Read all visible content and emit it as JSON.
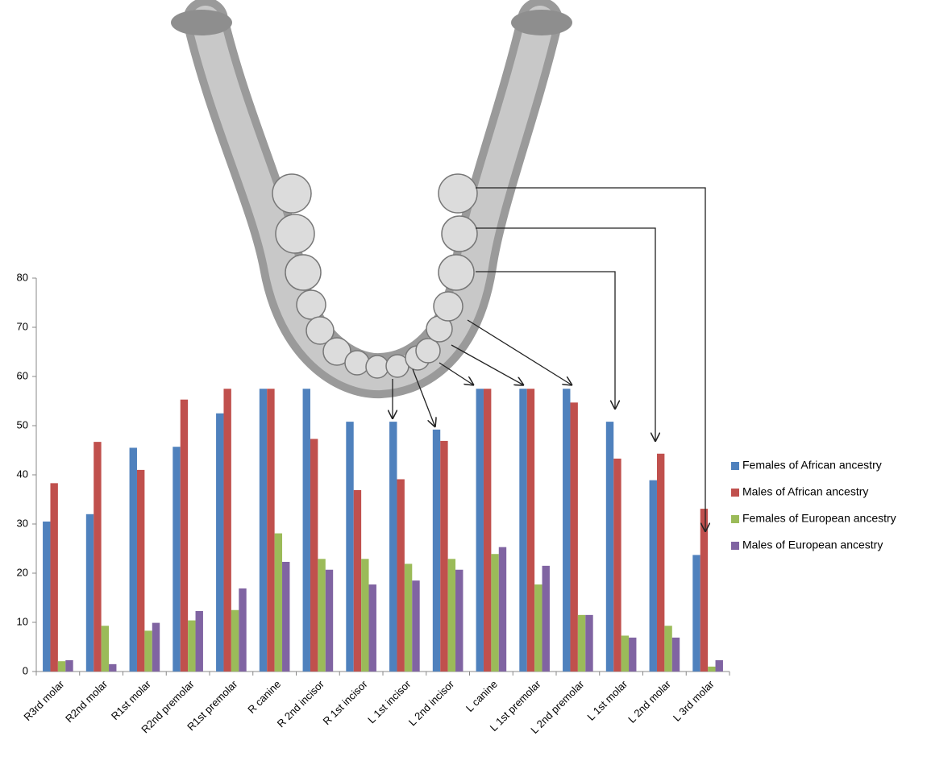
{
  "chart_data": {
    "type": "bar",
    "categories": [
      "R3rd molar",
      "R2nd molar",
      "R1st molar",
      "R2nd premolar",
      "R1st premolar",
      "R canine",
      "R 2nd incisor",
      "R 1st incisor",
      "L 1st incisor",
      "L 2nd incisor",
      "L canine",
      "L 1st premolar",
      "L 2nd premolar",
      "L 1st molar",
      "L 2nd molar",
      "L 3rd molar"
    ],
    "series": [
      {
        "name": "Females of African ancestry",
        "color": "#4f81bd",
        "values": [
          30.5,
          32,
          45.5,
          45.7,
          52.5,
          57.5,
          57.5,
          50.8,
          50.8,
          49.2,
          57.5,
          57.5,
          57.5,
          50.8,
          38.9,
          23.7
        ]
      },
      {
        "name": "Males of African ancestry",
        "color": "#c0504d",
        "values": [
          38.3,
          46.7,
          41,
          55.3,
          57.5,
          57.5,
          47.3,
          36.9,
          39.1,
          46.9,
          57.5,
          57.5,
          54.7,
          43.3,
          44.3,
          33.1
        ]
      },
      {
        "name": "Females of European ancestry",
        "color": "#9bbb59",
        "values": [
          2.1,
          9.3,
          8.3,
          10.4,
          12.5,
          28.1,
          22.9,
          22.9,
          21.9,
          22.9,
          23.9,
          17.7,
          11.5,
          7.3,
          9.3,
          1.0
        ]
      },
      {
        "name": "Males of European ancestry",
        "color": "#8064a2",
        "values": [
          2.3,
          1.5,
          9.9,
          12.3,
          16.9,
          22.3,
          20.7,
          17.7,
          18.5,
          20.7,
          25.3,
          21.5,
          11.5,
          6.9,
          6.9,
          2.3
        ]
      }
    ],
    "ylim": [
      0,
      80
    ],
    "yticks": [
      0,
      10,
      20,
      30,
      40,
      50,
      60,
      70,
      80
    ],
    "grid": false,
    "legend": "right"
  }
}
